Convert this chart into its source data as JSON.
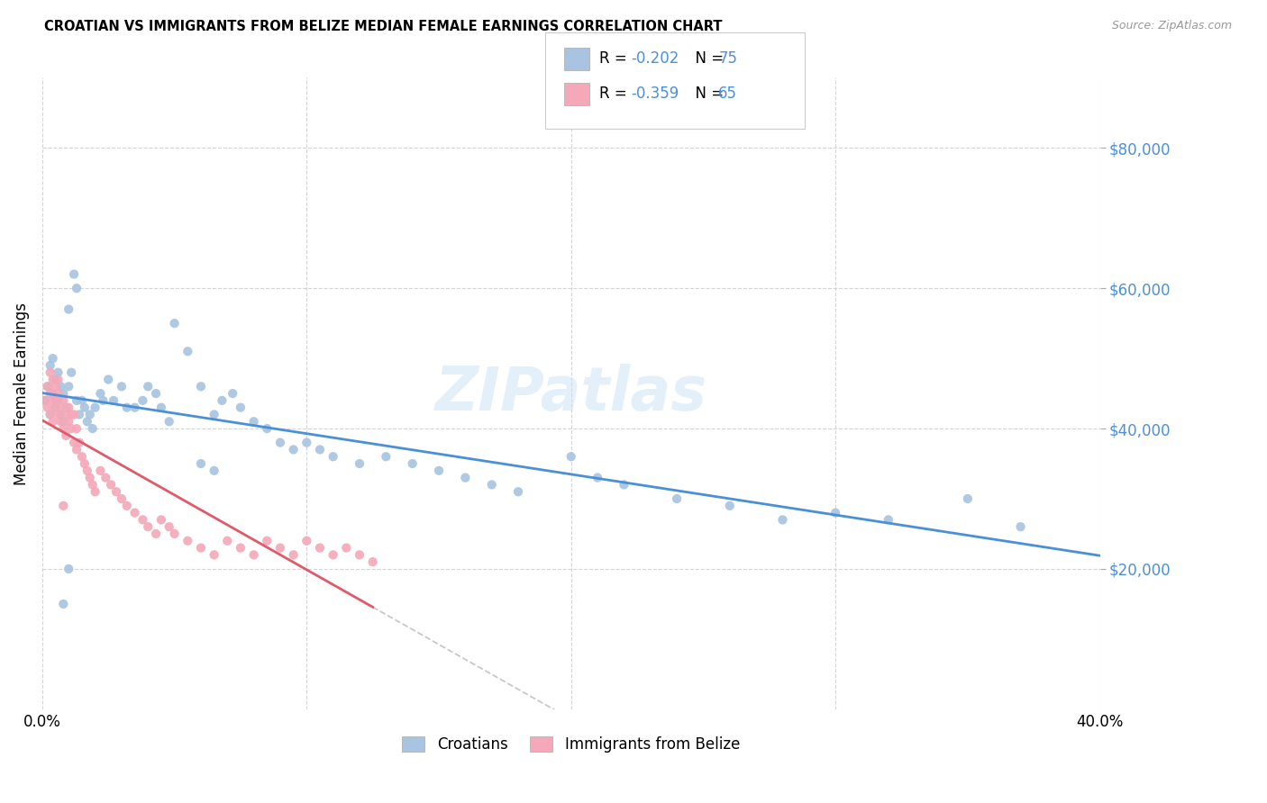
{
  "title": "CROATIAN VS IMMIGRANTS FROM BELIZE MEDIAN FEMALE EARNINGS CORRELATION CHART",
  "source": "Source: ZipAtlas.com",
  "ylabel": "Median Female Earnings",
  "xlim": [
    0.0,
    0.4
  ],
  "ylim": [
    0,
    90000
  ],
  "yticks": [
    20000,
    40000,
    60000,
    80000
  ],
  "ytick_labels": [
    "$20,000",
    "$40,000",
    "$60,000",
    "$80,000"
  ],
  "xticks": [
    0.0,
    0.1,
    0.2,
    0.3,
    0.4
  ],
  "xtick_labels": [
    "0.0%",
    "",
    "",
    "",
    "40.0%"
  ],
  "blue_color": "#a8c4e0",
  "pink_color": "#f4a8b8",
  "trend_blue": "#4a90d9",
  "trend_pink": "#e05a6a",
  "trend_gray": "#c8c8c8",
  "watermark": "ZIPatlas",
  "legend_r1": "-0.202",
  "legend_n1": "75",
  "legend_r2": "-0.359",
  "legend_n2": "65",
  "cr_x": [
    0.001,
    0.002,
    0.003,
    0.003,
    0.004,
    0.004,
    0.005,
    0.005,
    0.006,
    0.006,
    0.007,
    0.007,
    0.008,
    0.008,
    0.009,
    0.01,
    0.01,
    0.011,
    0.012,
    0.013,
    0.013,
    0.014,
    0.015,
    0.016,
    0.017,
    0.018,
    0.019,
    0.02,
    0.022,
    0.023,
    0.025,
    0.027,
    0.03,
    0.032,
    0.035,
    0.038,
    0.04,
    0.043,
    0.045,
    0.048,
    0.05,
    0.055,
    0.06,
    0.065,
    0.068,
    0.072,
    0.075,
    0.08,
    0.085,
    0.09,
    0.095,
    0.1,
    0.105,
    0.11,
    0.12,
    0.13,
    0.14,
    0.15,
    0.16,
    0.17,
    0.18,
    0.2,
    0.21,
    0.22,
    0.24,
    0.26,
    0.28,
    0.3,
    0.32,
    0.35,
    0.37,
    0.008,
    0.06,
    0.065,
    0.01
  ],
  "cr_y": [
    44000,
    46000,
    42000,
    49000,
    45000,
    50000,
    43000,
    47000,
    44000,
    48000,
    42000,
    46000,
    41000,
    45000,
    43000,
    46000,
    57000,
    48000,
    62000,
    60000,
    44000,
    42000,
    44000,
    43000,
    41000,
    42000,
    40000,
    43000,
    45000,
    44000,
    47000,
    44000,
    46000,
    43000,
    43000,
    44000,
    46000,
    45000,
    43000,
    41000,
    55000,
    51000,
    46000,
    42000,
    44000,
    45000,
    43000,
    41000,
    40000,
    38000,
    37000,
    38000,
    37000,
    36000,
    35000,
    36000,
    35000,
    34000,
    33000,
    32000,
    31000,
    36000,
    33000,
    32000,
    30000,
    29000,
    27000,
    28000,
    27000,
    30000,
    26000,
    15000,
    35000,
    34000,
    20000
  ],
  "bz_x": [
    0.001,
    0.002,
    0.002,
    0.003,
    0.003,
    0.004,
    0.004,
    0.005,
    0.005,
    0.006,
    0.006,
    0.007,
    0.007,
    0.008,
    0.008,
    0.009,
    0.009,
    0.01,
    0.01,
    0.011,
    0.011,
    0.012,
    0.012,
    0.013,
    0.013,
    0.014,
    0.015,
    0.016,
    0.017,
    0.018,
    0.019,
    0.02,
    0.022,
    0.024,
    0.026,
    0.028,
    0.03,
    0.032,
    0.035,
    0.038,
    0.04,
    0.043,
    0.045,
    0.048,
    0.05,
    0.055,
    0.06,
    0.065,
    0.07,
    0.075,
    0.08,
    0.085,
    0.09,
    0.095,
    0.1,
    0.105,
    0.11,
    0.115,
    0.12,
    0.125,
    0.003,
    0.004,
    0.005,
    0.006,
    0.008
  ],
  "bz_y": [
    44000,
    46000,
    43000,
    45000,
    42000,
    44000,
    41000,
    44000,
    43000,
    45000,
    42000,
    43000,
    41000,
    44000,
    40000,
    42000,
    39000,
    43000,
    41000,
    42000,
    40000,
    42000,
    38000,
    40000,
    37000,
    38000,
    36000,
    35000,
    34000,
    33000,
    32000,
    31000,
    34000,
    33000,
    32000,
    31000,
    30000,
    29000,
    28000,
    27000,
    26000,
    25000,
    27000,
    26000,
    25000,
    24000,
    23000,
    22000,
    24000,
    23000,
    22000,
    24000,
    23000,
    22000,
    24000,
    23000,
    22000,
    23000,
    22000,
    21000,
    48000,
    47000,
    46000,
    47000,
    29000
  ]
}
